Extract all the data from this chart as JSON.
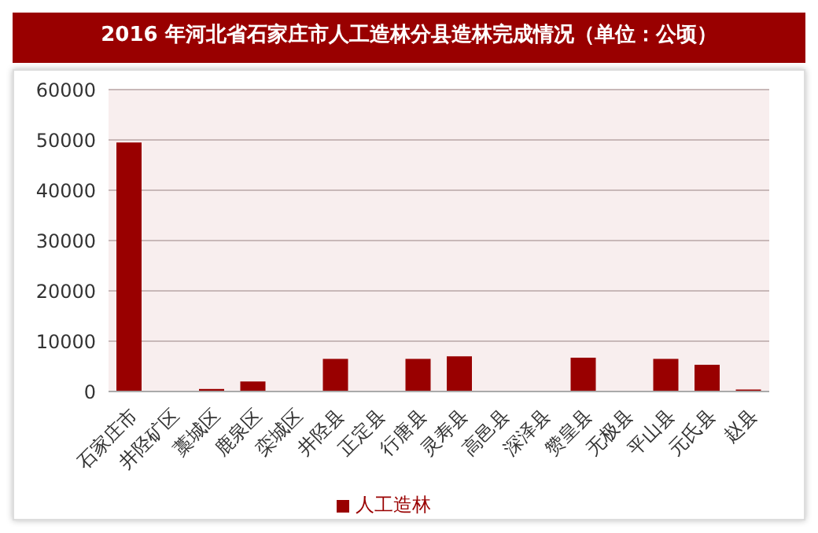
{
  "chart_data": {
    "type": "bar",
    "title": "2016 年河北省石家庄市人工造林分县造林完成情况（单位：公顷）",
    "categories": [
      "石家庄市",
      "井陉矿区",
      "藁城区",
      "鹿泉区",
      "栾城区",
      "井陉县",
      "正定县",
      "行唐县",
      "灵寿县",
      "高邑县",
      "深泽县",
      "赞皇县",
      "无极县",
      "平山县",
      "元氏县",
      "赵县"
    ],
    "series": [
      {
        "name": "人工造林",
        "color": "#990000",
        "values": [
          49500,
          0,
          500,
          2000,
          0,
          6500,
          0,
          6500,
          7000,
          0,
          0,
          6700,
          0,
          6500,
          5300,
          400
        ]
      }
    ],
    "ylim": [
      0,
      60000
    ],
    "yticks": [
      0,
      10000,
      20000,
      30000,
      40000,
      50000,
      60000
    ],
    "grid": "y",
    "legend": "bottom"
  }
}
